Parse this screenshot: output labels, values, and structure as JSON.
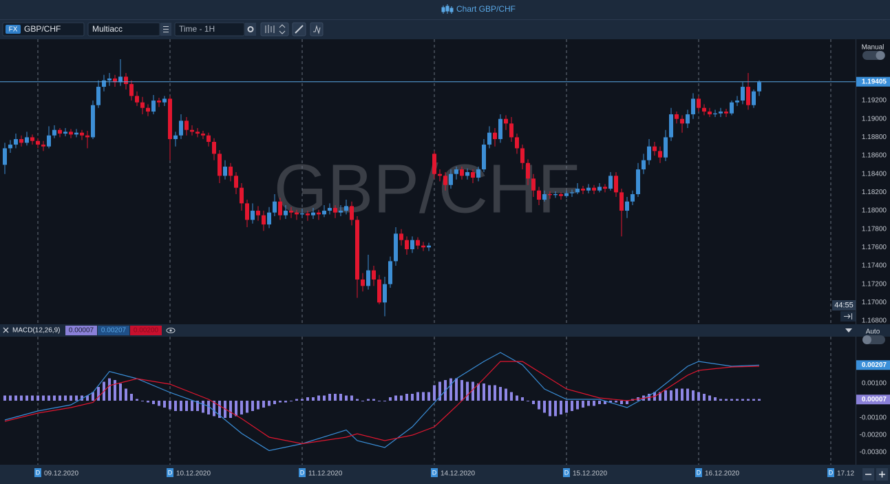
{
  "window_title": "Chart GBP/CHF",
  "toolbar": {
    "market": "FX",
    "symbol": "GBP/CHF",
    "account": "Multiacc",
    "timeframe": "Time - 1H"
  },
  "scale_modes": {
    "price": "Manual",
    "indicator": "Auto"
  },
  "countdown": "44:55",
  "time_axis_marker": "D",
  "chart_data": [
    {
      "type": "candlestick",
      "watermark": "GBP/CHF",
      "up_color": "#3d8fd6",
      "down_color": "#e3162f",
      "grid": true,
      "xlim": [
        -0.875,
        154.5
      ],
      "xticks": [
        {
          "value": 6,
          "label": "09.12.2020"
        },
        {
          "value": 30,
          "label": "10.12.2020"
        },
        {
          "value": 54,
          "label": "11.12.2020"
        },
        {
          "value": 78,
          "label": "14.12.2020"
        },
        {
          "value": 102,
          "label": "15.12.2020"
        },
        {
          "value": 126,
          "label": "16.12.2020"
        },
        {
          "value": 150,
          "label": "17.12"
        }
      ],
      "ylim": [
        1.1677,
        1.19868
      ],
      "yticks": [
        {
          "value": 1.168,
          "label": "1.16800"
        },
        {
          "value": 1.17,
          "label": "1.17000"
        },
        {
          "value": 1.172,
          "label": "1.17200"
        },
        {
          "value": 1.174,
          "label": "1.17400"
        },
        {
          "value": 1.176,
          "label": "1.17600"
        },
        {
          "value": 1.178,
          "label": "1.17800"
        },
        {
          "value": 1.18,
          "label": "1.18000"
        },
        {
          "value": 1.182,
          "label": "1.18200"
        },
        {
          "value": 1.184,
          "label": "1.18400"
        },
        {
          "value": 1.186,
          "label": "1.18600"
        },
        {
          "value": 1.188,
          "label": "1.18800"
        },
        {
          "value": 1.19,
          "label": "1.19000"
        },
        {
          "value": 1.192,
          "label": "1.19200"
        }
      ],
      "current_price": {
        "value": 1.19405,
        "label": "1.19405"
      },
      "ohlc": [
        [
          1.185,
          1.1874,
          1.184,
          1.1868
        ],
        [
          1.1868,
          1.1877,
          1.1863,
          1.1872
        ],
        [
          1.1872,
          1.1884,
          1.1868,
          1.1878
        ],
        [
          1.1878,
          1.1882,
          1.187,
          1.1874
        ],
        [
          1.1874,
          1.1886,
          1.1871,
          1.188
        ],
        [
          1.188,
          1.1883,
          1.1872,
          1.1876
        ],
        [
          1.1876,
          1.1879,
          1.1868,
          1.1872
        ],
        [
          1.1872,
          1.1876,
          1.1865,
          1.187
        ],
        [
          1.187,
          1.1892,
          1.1868,
          1.1882
        ],
        [
          1.1882,
          1.1893,
          1.1879,
          1.1888
        ],
        [
          1.1888,
          1.189,
          1.188,
          1.1884
        ],
        [
          1.1884,
          1.189,
          1.1881,
          1.1886
        ],
        [
          1.1886,
          1.1889,
          1.1879,
          1.1883
        ],
        [
          1.1883,
          1.1889,
          1.188,
          1.1885
        ],
        [
          1.1885,
          1.1888,
          1.1877,
          1.1882
        ],
        [
          1.1882,
          1.1887,
          1.1868,
          1.188
        ],
        [
          1.188,
          1.192,
          1.1878,
          1.1915
        ],
        [
          1.1915,
          1.1942,
          1.1912,
          1.1935
        ],
        [
          1.1935,
          1.1948,
          1.193,
          1.1942
        ],
        [
          1.1942,
          1.195,
          1.1936,
          1.1944
        ],
        [
          1.1944,
          1.1948,
          1.1935,
          1.194
        ],
        [
          1.194,
          1.1965,
          1.1936,
          1.1946
        ],
        [
          1.1946,
          1.195,
          1.1932,
          1.1938
        ],
        [
          1.1938,
          1.1942,
          1.192,
          1.1925
        ],
        [
          1.1925,
          1.193,
          1.1914,
          1.1918
        ],
        [
          1.1918,
          1.1924,
          1.1905,
          1.1912
        ],
        [
          1.1912,
          1.1916,
          1.1903,
          1.1908
        ],
        [
          1.1908,
          1.1926,
          1.1905,
          1.192
        ],
        [
          1.192,
          1.1923,
          1.1913,
          1.1918
        ],
        [
          1.1918,
          1.1925,
          1.1914,
          1.1922
        ],
        [
          1.1922,
          1.1925,
          1.1855,
          1.1878
        ],
        [
          1.1878,
          1.1886,
          1.187,
          1.1882
        ],
        [
          1.1882,
          1.1905,
          1.1878,
          1.1898
        ],
        [
          1.1898,
          1.1902,
          1.1882,
          1.1888
        ],
        [
          1.1888,
          1.1893,
          1.1882,
          1.1886
        ],
        [
          1.1886,
          1.189,
          1.188,
          1.1884
        ],
        [
          1.1884,
          1.1887,
          1.1878,
          1.1882
        ],
        [
          1.1882,
          1.1885,
          1.187,
          1.1875
        ],
        [
          1.1875,
          1.1879,
          1.1855,
          1.1862
        ],
        [
          1.1862,
          1.1866,
          1.183,
          1.1838
        ],
        [
          1.1838,
          1.1855,
          1.1834,
          1.1848
        ],
        [
          1.1848,
          1.1852,
          1.1832,
          1.1838
        ],
        [
          1.1838,
          1.1842,
          1.1818,
          1.1825
        ],
        [
          1.1825,
          1.183,
          1.18,
          1.1808
        ],
        [
          1.1808,
          1.1812,
          1.1782,
          1.179
        ],
        [
          1.179,
          1.1808,
          1.1786,
          1.18
        ],
        [
          1.18,
          1.1805,
          1.1789,
          1.1795
        ],
        [
          1.1795,
          1.18,
          1.1778,
          1.1785
        ],
        [
          1.1785,
          1.1804,
          1.1781,
          1.1798
        ],
        [
          1.1798,
          1.1818,
          1.1794,
          1.181
        ],
        [
          1.181,
          1.1814,
          1.179,
          1.1795
        ],
        [
          1.1795,
          1.1806,
          1.1791,
          1.18
        ],
        [
          1.18,
          1.1804,
          1.1792,
          1.1798
        ],
        [
          1.1798,
          1.1801,
          1.179,
          1.1796
        ],
        [
          1.1796,
          1.1802,
          1.1792,
          1.1797
        ],
        [
          1.1797,
          1.18,
          1.1789,
          1.1795
        ],
        [
          1.1795,
          1.1803,
          1.1791,
          1.1798
        ],
        [
          1.1798,
          1.1801,
          1.179,
          1.1796
        ],
        [
          1.1796,
          1.1806,
          1.1793,
          1.18
        ],
        [
          1.18,
          1.1808,
          1.1796,
          1.1803
        ],
        [
          1.1803,
          1.1806,
          1.1792,
          1.1798
        ],
        [
          1.1798,
          1.1806,
          1.1794,
          1.18
        ],
        [
          1.18,
          1.1812,
          1.1796,
          1.1805
        ],
        [
          1.1805,
          1.181,
          1.1784,
          1.179
        ],
        [
          1.179,
          1.1794,
          1.1705,
          1.1725
        ],
        [
          1.1725,
          1.1732,
          1.1712,
          1.1718
        ],
        [
          1.1718,
          1.1752,
          1.1714,
          1.1735
        ],
        [
          1.1735,
          1.174,
          1.1718,
          1.1725
        ],
        [
          1.1725,
          1.173,
          1.1698,
          1.17
        ],
        [
          1.17,
          1.1728,
          1.1685,
          1.172
        ],
        [
          1.172,
          1.175,
          1.1716,
          1.1745
        ],
        [
          1.1745,
          1.1782,
          1.174,
          1.1775
        ],
        [
          1.1775,
          1.178,
          1.1762,
          1.1768
        ],
        [
          1.1768,
          1.1772,
          1.1752,
          1.1758
        ],
        [
          1.1758,
          1.1772,
          1.1754,
          1.1768
        ],
        [
          1.1768,
          1.1771,
          1.1758,
          1.1762
        ],
        [
          1.1762,
          1.1766,
          1.1756,
          1.176
        ],
        [
          1.176,
          1.1765,
          1.1756,
          1.1762
        ],
        [
          1.1862,
          1.1865,
          1.1835,
          1.184
        ],
        [
          1.184,
          1.1845,
          1.1832,
          1.1838
        ],
        [
          1.1838,
          1.1842,
          1.1822,
          1.1828
        ],
        [
          1.1828,
          1.1845,
          1.1824,
          1.184
        ],
        [
          1.184,
          1.1848,
          1.1834,
          1.1845
        ],
        [
          1.1845,
          1.1848,
          1.1834,
          1.1838
        ],
        [
          1.1838,
          1.1846,
          1.1834,
          1.1842
        ],
        [
          1.1842,
          1.1845,
          1.183,
          1.1836
        ],
        [
          1.1836,
          1.1848,
          1.1832,
          1.1845
        ],
        [
          1.1845,
          1.1878,
          1.1842,
          1.1872
        ],
        [
          1.1872,
          1.1892,
          1.1868,
          1.1885
        ],
        [
          1.1885,
          1.189,
          1.187,
          1.1878
        ],
        [
          1.1878,
          1.1905,
          1.1874,
          1.19
        ],
        [
          1.19,
          1.1904,
          1.1888,
          1.1895
        ],
        [
          1.1895,
          1.1902,
          1.1875,
          1.188
        ],
        [
          1.188,
          1.1884,
          1.1862,
          1.1868
        ],
        [
          1.1868,
          1.1872,
          1.1845,
          1.1852
        ],
        [
          1.1852,
          1.1856,
          1.1828,
          1.1835
        ],
        [
          1.1835,
          1.184,
          1.1815,
          1.1822
        ],
        [
          1.1822,
          1.1826,
          1.1806,
          1.1812
        ],
        [
          1.1812,
          1.1822,
          1.181,
          1.1818
        ],
        [
          1.1818,
          1.1821,
          1.1813,
          1.1817
        ],
        [
          1.1817,
          1.1821,
          1.1814,
          1.1818
        ],
        [
          1.1818,
          1.182,
          1.1812,
          1.1816
        ],
        [
          1.1816,
          1.1822,
          1.1814,
          1.1819
        ],
        [
          1.1819,
          1.1823,
          1.1815,
          1.182
        ],
        [
          1.182,
          1.183,
          1.1818,
          1.1824
        ],
        [
          1.1824,
          1.1827,
          1.1818,
          1.1822
        ],
        [
          1.1822,
          1.1829,
          1.1819,
          1.1825
        ],
        [
          1.1825,
          1.1828,
          1.1818,
          1.1822
        ],
        [
          1.1822,
          1.183,
          1.182,
          1.1826
        ],
        [
          1.1826,
          1.1829,
          1.182,
          1.1824
        ],
        [
          1.1824,
          1.1842,
          1.1822,
          1.1838
        ],
        [
          1.1838,
          1.1842,
          1.1815,
          1.182
        ],
        [
          1.182,
          1.1824,
          1.1772,
          1.18
        ],
        [
          1.18,
          1.1815,
          1.1792,
          1.181
        ],
        [
          1.181,
          1.1822,
          1.1806,
          1.1818
        ],
        [
          1.1818,
          1.1852,
          1.1815,
          1.1845
        ],
        [
          1.1845,
          1.1862,
          1.184,
          1.1855
        ],
        [
          1.1855,
          1.1878,
          1.185,
          1.187
        ],
        [
          1.187,
          1.1875,
          1.186,
          1.1865
        ],
        [
          1.1865,
          1.187,
          1.1852,
          1.1858
        ],
        [
          1.1858,
          1.1888,
          1.1854,
          1.188
        ],
        [
          1.188,
          1.1912,
          1.1876,
          1.1905
        ],
        [
          1.1905,
          1.1908,
          1.1895,
          1.19
        ],
        [
          1.19,
          1.1904,
          1.1885,
          1.1895
        ],
        [
          1.1895,
          1.191,
          1.189,
          1.1905
        ],
        [
          1.1905,
          1.1928,
          1.19,
          1.1922
        ],
        [
          1.1922,
          1.1925,
          1.1908,
          1.1912
        ],
        [
          1.1912,
          1.1916,
          1.1904,
          1.1908
        ],
        [
          1.1908,
          1.1912,
          1.1902,
          1.1905
        ],
        [
          1.1905,
          1.191,
          1.1902,
          1.1906
        ],
        [
          1.1906,
          1.1912,
          1.1902,
          1.1908
        ],
        [
          1.1908,
          1.1911,
          1.1902,
          1.1906
        ],
        [
          1.1906,
          1.192,
          1.1904,
          1.1918
        ],
        [
          1.1918,
          1.1925,
          1.1914,
          1.192
        ],
        [
          1.192,
          1.194,
          1.1916,
          1.1935
        ],
        [
          1.1935,
          1.195,
          1.191,
          1.1915
        ],
        [
          1.1915,
          1.1932,
          1.1912,
          1.193
        ],
        [
          1.193,
          1.1942,
          1.1925,
          1.194
        ]
      ]
    },
    {
      "type": "macd",
      "title": "MACD(12,26,9)",
      "ylim": [
        -0.00372,
        0.00372
      ],
      "yticks": [
        {
          "value": 0.001,
          "label": "0.00100"
        },
        {
          "value": -0.001,
          "label": "-0.00100"
        },
        {
          "value": -0.002,
          "label": "-0.00200"
        },
        {
          "value": -0.003,
          "label": "-0.00300"
        }
      ],
      "x": [
        0,
        6,
        12,
        16,
        19,
        24,
        30,
        37,
        43,
        48,
        54,
        62,
        64,
        69,
        74,
        78,
        82,
        87,
        90,
        94,
        98,
        102,
        108,
        113,
        118,
        124,
        126,
        132,
        137
      ],
      "series": [
        {
          "color": "#3a8fd9",
          "values": [
            -0.00112,
            -0.0006,
            -0.00024,
            0.00048,
            0.0017,
            0.00128,
            0.00048,
            -0.00032,
            -0.0019,
            -0.0029,
            -0.0025,
            -0.0017,
            -0.00232,
            -0.00272,
            -0.00152,
            -0.00012,
            0.00128,
            0.00228,
            0.0028,
            0.00208,
            0.00068,
            8e-05,
            8e-05,
            -0.0004,
            0.00048,
            0.002,
            0.00228,
            0.002,
            0.00207
          ]
        },
        {
          "color": "#e3162f",
          "values": [
            -0.0012,
            -0.00072,
            -0.0004,
            -0.0001,
            0.00088,
            0.00128,
            0.00096,
            8e-05,
            -0.00104,
            -0.00212,
            -0.0025,
            -0.00212,
            -0.00192,
            -0.00232,
            -0.002,
            -0.00152,
            -0.00032,
            0.00128,
            0.00228,
            0.00228,
            0.00148,
            0.00068,
            0.00016,
            0,
            0.00024,
            0.00148,
            0.00176,
            0.00196,
            0.002
          ]
        }
      ],
      "histogram_color": "#8f87e6",
      "histogram": [
        0.0003,
        0.0003,
        0.0003,
        0.0003,
        0.0003,
        0.0003,
        0.0003,
        0.0003,
        0.0003,
        0.0003,
        0.0003,
        0.0003,
        0.0003,
        0.0003,
        0.0003,
        0.0003,
        0.0005,
        0.0008,
        0.0011,
        0.0013,
        0.0012,
        0.001,
        0.0007,
        0.0004,
        0.0001,
        0.0,
        -0.0001,
        -0.0002,
        -0.0003,
        -0.0004,
        -0.0005,
        -0.0006,
        -0.0006,
        -0.0006,
        -0.0006,
        -0.0006,
        -0.0007,
        -0.0008,
        -0.0009,
        -0.001,
        -0.001,
        -0.001,
        -0.0009,
        -0.0008,
        -0.0007,
        -0.0006,
        -0.0005,
        -0.0004,
        -0.0003,
        -0.0002,
        -0.0001,
        -0.0001,
        0.0,
        0.0001,
        0.0001,
        0.0002,
        0.0002,
        0.0003,
        0.0003,
        0.0004,
        0.0004,
        0.0004,
        0.0003,
        0.0003,
        0.0001,
        0.0,
        0.0001,
        0.0001,
        0.0,
        0.0,
        0.0002,
        0.0003,
        0.0003,
        0.0004,
        0.0004,
        0.0005,
        0.0005,
        0.0005,
        0.0009,
        0.0011,
        0.0012,
        0.0013,
        0.0013,
        0.0012,
        0.0011,
        0.0011,
        0.001,
        0.001,
        0.0009,
        0.0009,
        0.0008,
        0.0007,
        0.0005,
        0.0003,
        0.0002,
        0.0,
        -0.0002,
        -0.0005,
        -0.0007,
        -0.0009,
        -0.0009,
        -0.0008,
        -0.0007,
        -0.0006,
        -0.0005,
        -0.0004,
        -0.0003,
        -0.0003,
        -0.0002,
        -0.0002,
        -0.0001,
        -0.0001,
        -0.0002,
        -0.0002,
        0.0001,
        0.0002,
        0.0003,
        0.0004,
        0.0005,
        0.0005,
        0.0006,
        0.0006,
        0.0007,
        0.0007,
        0.0007,
        0.0006,
        0.0005,
        0.0004,
        0.0003,
        0.0002,
        0.0001,
        0.0001,
        0.0001,
        0.0001,
        0.0001,
        0.0001,
        0.0001,
        0.0001
      ],
      "last_values": {
        "histogram": {
          "value": 7e-05,
          "label": "0.00007"
        },
        "macd": {
          "value": 0.00207,
          "label": "0.00207"
        },
        "signal": {
          "value": 0.002,
          "label": "0.00200"
        }
      }
    }
  ]
}
